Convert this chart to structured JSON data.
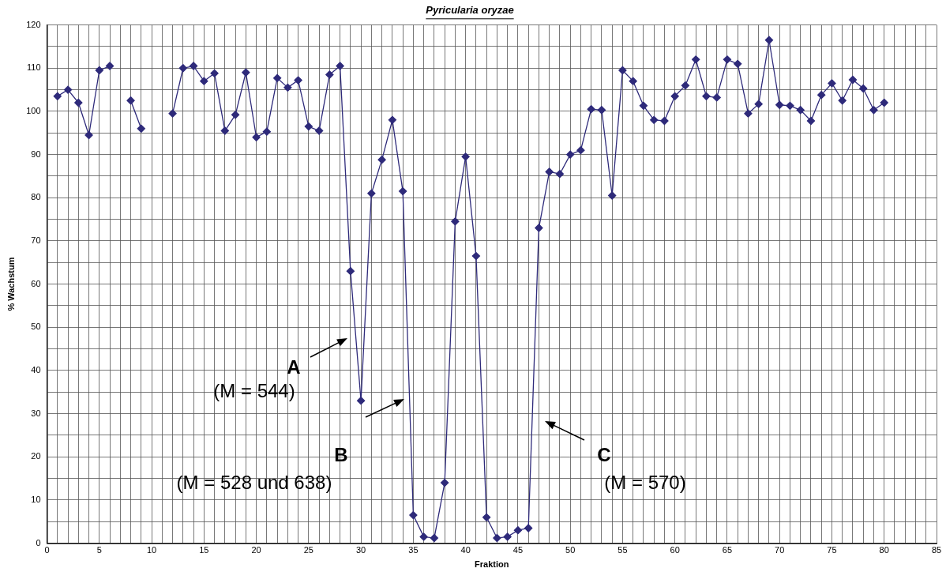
{
  "chart_data": {
    "type": "line",
    "title": "Pyricularia oryzae",
    "xlabel": "Fraktion",
    "ylabel": "% Wachstum",
    "x": [
      1,
      2,
      3,
      4,
      5,
      6,
      7,
      8,
      9,
      10,
      11,
      12,
      13,
      14,
      15,
      16,
      17,
      18,
      19,
      20,
      21,
      22,
      23,
      24,
      25,
      26,
      27,
      28,
      29,
      30,
      31,
      32,
      33,
      34,
      35,
      36,
      37,
      38,
      39,
      40,
      41,
      42,
      43,
      44,
      45,
      46,
      47,
      48,
      49,
      50,
      51,
      52,
      53,
      54,
      55,
      56,
      57,
      58,
      59,
      60,
      61,
      62,
      63,
      64,
      65,
      66,
      67,
      68,
      69,
      70,
      71,
      72,
      73,
      74,
      75,
      76,
      77,
      78,
      79,
      80
    ],
    "series": [
      {
        "color": "#2e2a7a",
        "values": [
          103.5,
          105,
          102,
          94.5,
          109.5,
          110.5,
          null,
          102.5,
          96,
          null,
          null,
          99.5,
          110,
          110.5,
          107,
          108.8,
          95.5,
          99.2,
          109,
          94,
          95.3,
          107.7,
          105.5,
          107.2,
          96.5,
          95.5,
          108.5,
          110.5,
          63,
          33,
          81,
          88.8,
          98,
          81.5,
          6.5,
          1.5,
          1.2,
          14,
          74.5,
          89.5,
          66.5,
          6,
          1.2,
          1.5,
          3,
          3.5,
          73,
          86,
          85.5,
          90,
          91,
          100.5,
          100.3,
          80.5,
          109.5,
          107,
          101.3,
          98,
          97.8,
          103.5,
          106,
          112,
          103.5,
          103.2,
          112,
          111,
          99.5,
          101.7,
          116.5,
          101.5,
          101.3,
          100.3,
          97.8,
          103.8,
          106.5,
          102.5,
          107.3,
          105.3,
          100.3,
          102
        ]
      }
    ],
    "xlim": [
      0,
      85
    ],
    "xticks": [
      0,
      {
        "value": 1,
        "label": null
      },
      {
        "value": 2,
        "label": null
      },
      {
        "value": 3,
        "label": null
      },
      {
        "value": 4,
        "label": null
      },
      5,
      {
        "value": 6,
        "label": null
      },
      {
        "value": 7,
        "label": null
      },
      {
        "value": 8,
        "label": null
      },
      {
        "value": 9,
        "label": null
      },
      10,
      {
        "value": 11,
        "label": null
      },
      {
        "value": 12,
        "label": null
      },
      {
        "value": 13,
        "label": null
      },
      {
        "value": 14,
        "label": null
      },
      15,
      {
        "value": 16,
        "label": null
      },
      {
        "value": 17,
        "label": null
      },
      {
        "value": 18,
        "label": null
      },
      {
        "value": 19,
        "label": null
      },
      20,
      {
        "value": 21,
        "label": null
      },
      {
        "value": 22,
        "label": null
      },
      {
        "value": 23,
        "label": null
      },
      {
        "value": 24,
        "label": null
      },
      25,
      {
        "value": 26,
        "label": null
      },
      {
        "value": 27,
        "label": null
      },
      {
        "value": 28,
        "label": null
      },
      {
        "value": 29,
        "label": null
      },
      30,
      {
        "value": 31,
        "label": null
      },
      {
        "value": 32,
        "label": null
      },
      {
        "value": 33,
        "label": null
      },
      {
        "value": 34,
        "label": null
      },
      35,
      {
        "value": 36,
        "label": null
      },
      {
        "value": 37,
        "label": null
      },
      {
        "value": 38,
        "label": null
      },
      {
        "value": 39,
        "label": null
      },
      40,
      {
        "value": 41,
        "label": null
      },
      {
        "value": 42,
        "label": null
      },
      {
        "value": 43,
        "label": null
      },
      {
        "value": 44,
        "label": null
      },
      45,
      {
        "value": 46,
        "label": null
      },
      {
        "value": 47,
        "label": null
      },
      {
        "value": 48,
        "label": null
      },
      {
        "value": 49,
        "label": null
      },
      50,
      {
        "value": 51,
        "label": null
      },
      {
        "value": 52,
        "label": null
      },
      {
        "value": 53,
        "label": null
      },
      {
        "value": 54,
        "label": null
      },
      55,
      {
        "value": 56,
        "label": null
      },
      {
        "value": 57,
        "label": null
      },
      {
        "value": 58,
        "label": null
      },
      {
        "value": 59,
        "label": null
      },
      60,
      {
        "value": 61,
        "label": null
      },
      {
        "value": 62,
        "label": null
      },
      {
        "value": 63,
        "label": null
      },
      {
        "value": 64,
        "label": null
      },
      65,
      {
        "value": 66,
        "label": null
      },
      {
        "value": 67,
        "label": null
      },
      {
        "value": 68,
        "label": null
      },
      {
        "value": 69,
        "label": null
      },
      70,
      {
        "value": 71,
        "label": null
      },
      {
        "value": 72,
        "label": null
      },
      {
        "value": 73,
        "label": null
      },
      {
        "value": 74,
        "label": null
      },
      75,
      {
        "value": 76,
        "label": null
      },
      {
        "value": 77,
        "label": null
      },
      {
        "value": 78,
        "label": null
      },
      {
        "value": 79,
        "label": null
      },
      80,
      {
        "value": 81,
        "label": null
      },
      {
        "value": 82,
        "label": null
      },
      {
        "value": 83,
        "label": null
      },
      {
        "value": 84,
        "label": null
      },
      85
    ],
    "ylim": [
      0,
      120
    ],
    "yticks": [
      0,
      {
        "value": 5,
        "label": null
      },
      10,
      {
        "value": 15,
        "label": null
      },
      20,
      {
        "value": 25,
        "label": null
      },
      30,
      {
        "value": 35,
        "label": null
      },
      40,
      {
        "value": 45,
        "label": null
      },
      50,
      {
        "value": 55,
        "label": null
      },
      60,
      {
        "value": 65,
        "label": null
      },
      70,
      {
        "value": 75,
        "label": null
      },
      80,
      {
        "value": 85,
        "label": null
      },
      90,
      {
        "value": 95,
        "label": null
      },
      100,
      {
        "value": 105,
        "label": null
      },
      110,
      {
        "value": 115,
        "label": null
      },
      120
    ],
    "grid": true,
    "legend": false,
    "marker": "diamond",
    "line_style": "solid",
    "annotations": [
      "A\n(M = 544)",
      "B\n(M = 528 und 638)",
      "C\n(M = 570)"
    ]
  }
}
